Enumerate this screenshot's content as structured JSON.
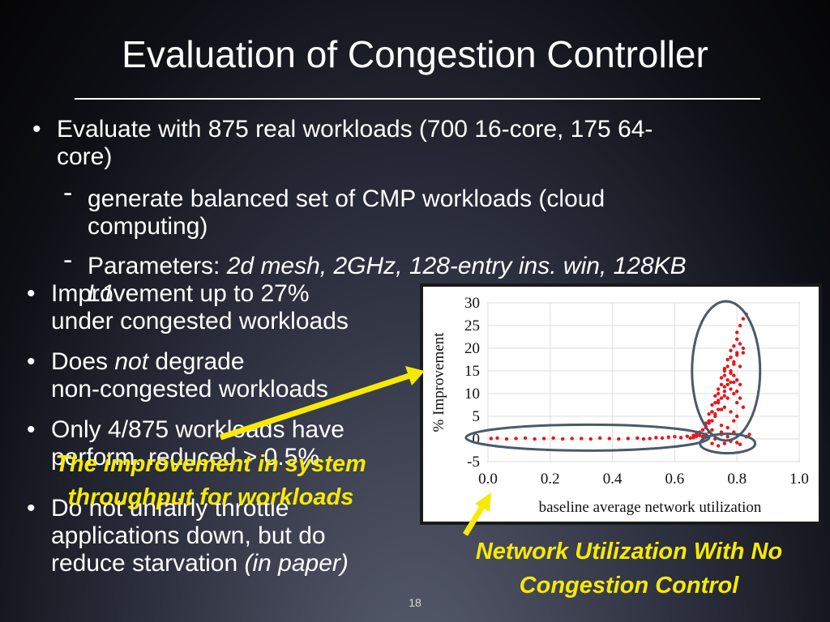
{
  "slide": {
    "title": "Evaluation of Congestion Controller",
    "bullets": {
      "b1_line1": "Evaluate with 875 real workloads (700 16-core, 175 64-",
      "b1_line2": "core)",
      "sub1_line1": "generate balanced set of CMP workloads (cloud",
      "sub1_line2": "computing)",
      "sub2_prefix": "Parameters: ",
      "sub2_italic": "2d mesh, 2GHz, 128-entry ins. win, 128KB",
      "sub2_line2": "L1",
      "b2_line1": "Improvement up to 27%",
      "b2_line2": "under congested workloads",
      "b3_prefix": "Does ",
      "b3_italic": "not",
      "b3_suffix": " degrade",
      "b3_line2": "non-congested workloads",
      "b4_line1": "Only 4/875 workloads have",
      "b4_line2": "perform. reduced > 0.5%",
      "b5_line1": "Do not unfairly throttle",
      "b5_line2": "applications down, but do",
      "b5_line3_prefix": "reduce starvation ",
      "b5_line3_italic": "(in paper)"
    },
    "callouts": {
      "throughput_line1": "The improvement in system",
      "throughput_line2": "throughput for workloads",
      "network_line1": "Network Utilization With No",
      "network_line2": "Congestion Control"
    },
    "page_number": "18"
  },
  "colors": {
    "accent": "#f7ea00",
    "points": "#e8151b",
    "ellipse": "#4a5a6c"
  },
  "chart_data": {
    "type": "scatter",
    "xlabel": "baseline average network utilization",
    "ylabel": "% Improvement",
    "xlim": [
      0.0,
      1.0
    ],
    "ylim": [
      -5,
      30
    ],
    "x_ticks": [
      "0.0",
      "0.2",
      "0.4",
      "0.6",
      "0.8",
      "1.0"
    ],
    "y_ticks": [
      "-5",
      "0",
      "5",
      "10",
      "15",
      "20",
      "25",
      "30"
    ],
    "grid": true,
    "series": [
      {
        "x": [
          0.01,
          0.03,
          0.06,
          0.09,
          0.12,
          0.15,
          0.18,
          0.21,
          0.24,
          0.27,
          0.3,
          0.33,
          0.36,
          0.39,
          0.42,
          0.45,
          0.48,
          0.5,
          0.52,
          0.54,
          0.56,
          0.58,
          0.6,
          0.62,
          0.64,
          0.66,
          0.67,
          0.68,
          0.69,
          0.7,
          0.7,
          0.71,
          0.71,
          0.72,
          0.72,
          0.73,
          0.73,
          0.74,
          0.74,
          0.75,
          0.75,
          0.75,
          0.76,
          0.76,
          0.76,
          0.77,
          0.77,
          0.77,
          0.78,
          0.78,
          0.78,
          0.79,
          0.79,
          0.79,
          0.8,
          0.8,
          0.8,
          0.81,
          0.81,
          0.82,
          0.82,
          0.83,
          0.75,
          0.74,
          0.76,
          0.77,
          0.78,
          0.79,
          0.8,
          0.8,
          0.81,
          0.82,
          0.79,
          0.77,
          0.76,
          0.73,
          0.72,
          0.75,
          0.78,
          0.8,
          0.81,
          0.79,
          0.78,
          0.76,
          0.74,
          0.73,
          0.71,
          0.7,
          0.72,
          0.75,
          0.77,
          0.79,
          0.8,
          0.82,
          0.81,
          0.8,
          0.78,
          0.76,
          0.74,
          0.72,
          0.7,
          0.69,
          0.68,
          0.67,
          0.66,
          0.65,
          0.72,
          0.74,
          0.76,
          0.78,
          0.8,
          0.81,
          0.83,
          0.84,
          0.79,
          0.77,
          0.75,
          0.73,
          0.71,
          0.7,
          0.69
        ],
        "y": [
          0.1,
          0.2,
          0.0,
          0.1,
          0.2,
          0.0,
          0.1,
          0.2,
          0.0,
          0.1,
          0.1,
          0.0,
          0.2,
          0.1,
          0.0,
          0.1,
          0.2,
          0.0,
          0.1,
          0.3,
          0.2,
          0.4,
          0.5,
          0.3,
          0.6,
          0.8,
          1.2,
          1.5,
          2.0,
          2.8,
          3.5,
          4.0,
          5.5,
          6.0,
          7.5,
          8.0,
          9.5,
          10.0,
          11.0,
          12.0,
          13.5,
          9.0,
          14.0,
          15.5,
          11.5,
          16.0,
          17.5,
          13.0,
          18.0,
          19.5,
          14.5,
          20.5,
          16.5,
          12.5,
          22.0,
          23.5,
          18.5,
          25.0,
          21.0,
          26.5,
          19.0,
          27.5,
          6.5,
          8.5,
          10.5,
          12.0,
          15.0,
          17.0,
          19.0,
          13.0,
          16.0,
          20.0,
          10.0,
          9.0,
          7.0,
          5.0,
          4.0,
          3.0,
          6.0,
          8.0,
          12.0,
          14.0,
          11.0,
          9.5,
          6.5,
          5.5,
          3.5,
          2.5,
          2.0,
          1.5,
          2.5,
          4.0,
          5.0,
          7.0,
          9.0,
          10.5,
          12.5,
          15.0,
          8.0,
          6.0,
          1.0,
          0.5,
          0.8,
          0.6,
          0.3,
          0.2,
          -1.0,
          -1.5,
          -1.0,
          -0.5,
          -0.8,
          -1.2,
          0.5,
          1.0,
          1.5,
          0.5,
          1.0,
          0.0,
          1.5,
          0.8,
          0.5
        ]
      }
    ]
  }
}
